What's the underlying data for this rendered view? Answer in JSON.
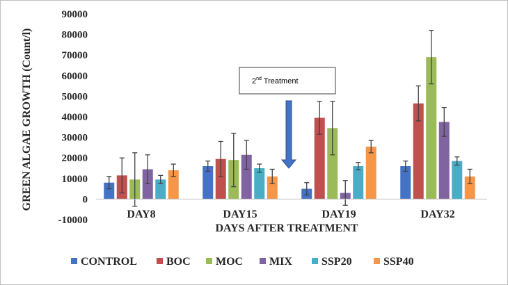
{
  "chart_data": {
    "type": "bar",
    "title": "",
    "xlabel": "DAYS AFTER TREATMENT",
    "ylabel": "GREEN ALGAE GROWTH (Count/l)",
    "ylim": [
      -10000,
      90000
    ],
    "yticks": [
      "-10000",
      "0",
      "10000",
      "20000",
      "30000",
      "40000",
      "50000",
      "60000",
      "70000",
      "80000",
      "90000"
    ],
    "categories": [
      "DAY8",
      "DAY15",
      "DAY19",
      "DAY32"
    ],
    "legend_position": "bottom",
    "grid": false,
    "series": [
      {
        "name": "CONTROL",
        "color": "#4472c4",
        "values": [
          8000,
          16000,
          5000,
          16000
        ],
        "errors": [
          3000,
          2500,
          3000,
          2500
        ]
      },
      {
        "name": "BOC",
        "color": "#c0504d",
        "values": [
          11500,
          19500,
          39500,
          46500
        ],
        "errors": [
          8500,
          8500,
          8000,
          8500
        ]
      },
      {
        "name": "MOC",
        "color": "#9bbb59",
        "values": [
          9500,
          19000,
          34500,
          69000
        ],
        "errors": [
          13000,
          13000,
          13000,
          13000
        ]
      },
      {
        "name": "MIX",
        "color": "#8064a2",
        "values": [
          14500,
          21500,
          3000,
          37500
        ],
        "errors": [
          7000,
          7000,
          6000,
          7000
        ]
      },
      {
        "name": "SSP20",
        "color": "#4bacc6",
        "values": [
          9500,
          15000,
          16000,
          18500
        ],
        "errors": [
          2000,
          2000,
          1800,
          2000
        ]
      },
      {
        "name": "SSP40",
        "color": "#f79646",
        "values": [
          14000,
          11000,
          25500,
          11000
        ],
        "errors": [
          3000,
          3500,
          3000,
          3500
        ]
      }
    ],
    "annotation": {
      "prefix": "2",
      "superscript": "nd",
      "text": " Treatment",
      "arrow_color": "#4472c4"
    }
  }
}
